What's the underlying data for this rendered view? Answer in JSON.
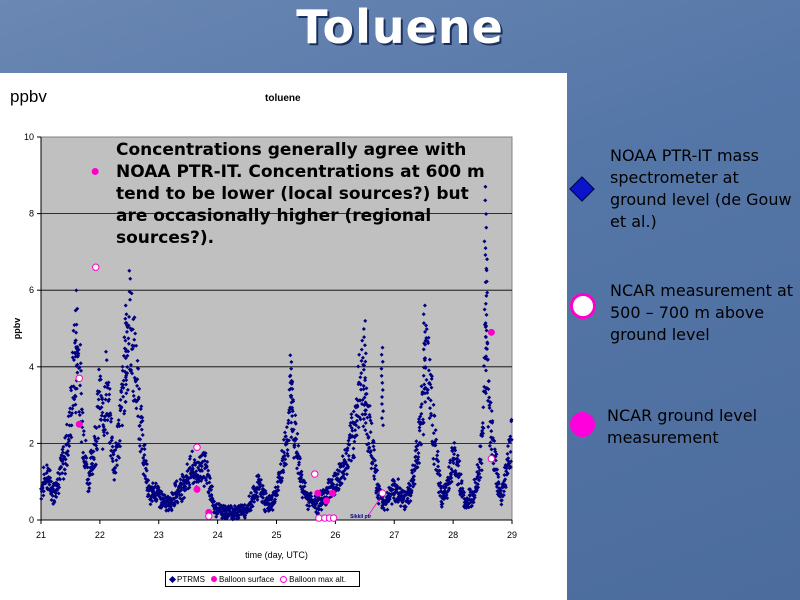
{
  "slide": {
    "title": "Toluene",
    "panel_ylabel": "ppbv",
    "note": "Concentrations generally agree with NOAA PTR-IT. Concentrations at 600 m tend to be lower (local sources?) but are occasionally higher (regional sources?).",
    "side_legend": [
      {
        "symbol": "blue-diamond",
        "text": "NOAA PTR-IT mass spectrometer at ground level (de Gouw et al.)"
      },
      {
        "symbol": "white-circle",
        "text": "NCAR measurement at 500 – 700 m above ground level"
      },
      {
        "symbol": "magenta-circle",
        "text": "NCAR ground level measurement"
      }
    ]
  },
  "colors": {
    "ptrms": "#000080",
    "balloon": "#ff00cc",
    "plot_bg": "#c0c0c0",
    "slide_bg": "#5577a8"
  },
  "chart_data": {
    "type": "scatter",
    "title": "toluene",
    "xlabel": "time (day, UTC)",
    "ylabel": "ppbv",
    "xlim": [
      21,
      29
    ],
    "ylim": [
      0,
      10
    ],
    "xticks": [
      21,
      22,
      23,
      24,
      25,
      26,
      27,
      28,
      29
    ],
    "yticks": [
      0,
      2,
      4,
      6,
      8,
      10
    ],
    "grid": "horizontal",
    "legend_position": "bottom",
    "annotation": "Sikkil ptr",
    "series": [
      {
        "name": "PTRMS",
        "marker": "diamond",
        "profile": [
          [
            21.0,
            0.8
          ],
          [
            21.1,
            1.2
          ],
          [
            21.2,
            0.7
          ],
          [
            21.3,
            1.1
          ],
          [
            21.4,
            1.6
          ],
          [
            21.5,
            2.6
          ],
          [
            21.55,
            3.8
          ],
          [
            21.6,
            4.9
          ],
          [
            21.65,
            4.0
          ],
          [
            21.7,
            2.6
          ],
          [
            21.8,
            1.0
          ],
          [
            21.9,
            1.8
          ],
          [
            22.0,
            3.2
          ],
          [
            22.05,
            2.4
          ],
          [
            22.1,
            3.6
          ],
          [
            22.15,
            2.8
          ],
          [
            22.25,
            1.4
          ],
          [
            22.35,
            2.6
          ],
          [
            22.45,
            4.4
          ],
          [
            22.5,
            5.3
          ],
          [
            22.55,
            4.6
          ],
          [
            22.65,
            3.2
          ],
          [
            22.75,
            1.6
          ],
          [
            22.85,
            0.6
          ],
          [
            22.95,
            0.8
          ],
          [
            23.05,
            0.5
          ],
          [
            23.15,
            0.4
          ],
          [
            23.25,
            0.6
          ],
          [
            23.35,
            0.8
          ],
          [
            23.45,
            1.0
          ],
          [
            23.55,
            1.3
          ],
          [
            23.65,
            1.2
          ],
          [
            23.75,
            1.5
          ],
          [
            23.85,
            1.0
          ],
          [
            23.95,
            0.3
          ],
          [
            24.1,
            0.2
          ],
          [
            24.3,
            0.2
          ],
          [
            24.5,
            0.3
          ],
          [
            24.7,
            0.9
          ],
          [
            24.8,
            0.5
          ],
          [
            24.9,
            0.4
          ],
          [
            25.0,
            0.7
          ],
          [
            25.1,
            1.4
          ],
          [
            25.2,
            2.4
          ],
          [
            25.25,
            3.2
          ],
          [
            25.3,
            2.4
          ],
          [
            25.4,
            1.2
          ],
          [
            25.5,
            0.6
          ],
          [
            25.6,
            0.5
          ],
          [
            25.7,
            0.4
          ],
          [
            25.8,
            0.6
          ],
          [
            25.9,
            0.8
          ],
          [
            26.0,
            1.0
          ],
          [
            26.1,
            1.2
          ],
          [
            26.2,
            1.6
          ],
          [
            26.3,
            2.2
          ],
          [
            26.4,
            3.2
          ],
          [
            26.45,
            4.0
          ],
          [
            26.5,
            3.0
          ],
          [
            26.6,
            2.2
          ],
          [
            26.7,
            1.0
          ],
          [
            26.8,
            0.4
          ],
          [
            26.9,
            0.6
          ],
          [
            27.0,
            0.8
          ],
          [
            27.1,
            0.7
          ],
          [
            27.2,
            0.5
          ],
          [
            27.3,
            0.9
          ],
          [
            27.4,
            1.8
          ],
          [
            27.5,
            3.4
          ],
          [
            27.55,
            4.6
          ],
          [
            27.6,
            3.6
          ],
          [
            27.7,
            1.8
          ],
          [
            27.8,
            0.6
          ],
          [
            27.9,
            0.8
          ],
          [
            28.0,
            1.6
          ],
          [
            28.1,
            1.2
          ],
          [
            28.2,
            0.4
          ],
          [
            28.3,
            0.6
          ],
          [
            28.4,
            1.0
          ],
          [
            28.5,
            2.0
          ],
          [
            28.55,
            4.8
          ],
          [
            28.6,
            3.2
          ],
          [
            28.7,
            1.6
          ],
          [
            28.8,
            0.6
          ],
          [
            28.9,
            1.2
          ],
          [
            29.0,
            2.2
          ]
        ],
        "peaks": [
          [
            21.6,
            5.1
          ],
          [
            22.45,
            5.6
          ],
          [
            28.55,
            8.7
          ],
          [
            28.57,
            7.1
          ],
          [
            27.52,
            5.6
          ],
          [
            26.5,
            5.2
          ],
          [
            25.25,
            4.3
          ],
          [
            26.8,
            4.5
          ]
        ]
      },
      {
        "name": "Balloon surface",
        "marker": "filled-circle",
        "points": [
          [
            21.92,
            9.1
          ],
          [
            21.65,
            2.5
          ],
          [
            23.65,
            0.8
          ],
          [
            23.85,
            0.2
          ],
          [
            25.7,
            0.7
          ],
          [
            25.85,
            0.5
          ],
          [
            25.95,
            0.7
          ],
          [
            28.65,
            4.9
          ]
        ]
      },
      {
        "name": "Balloon max alt.",
        "marker": "open-circle",
        "points": [
          [
            21.93,
            6.6
          ],
          [
            21.65,
            3.7
          ],
          [
            23.65,
            1.9
          ],
          [
            23.85,
            0.1
          ],
          [
            25.65,
            1.2
          ],
          [
            25.72,
            0.05
          ],
          [
            25.82,
            0.05
          ],
          [
            25.9,
            0.05
          ],
          [
            25.97,
            0.05
          ],
          [
            26.8,
            0.7
          ],
          [
            28.65,
            1.6
          ]
        ]
      }
    ]
  }
}
